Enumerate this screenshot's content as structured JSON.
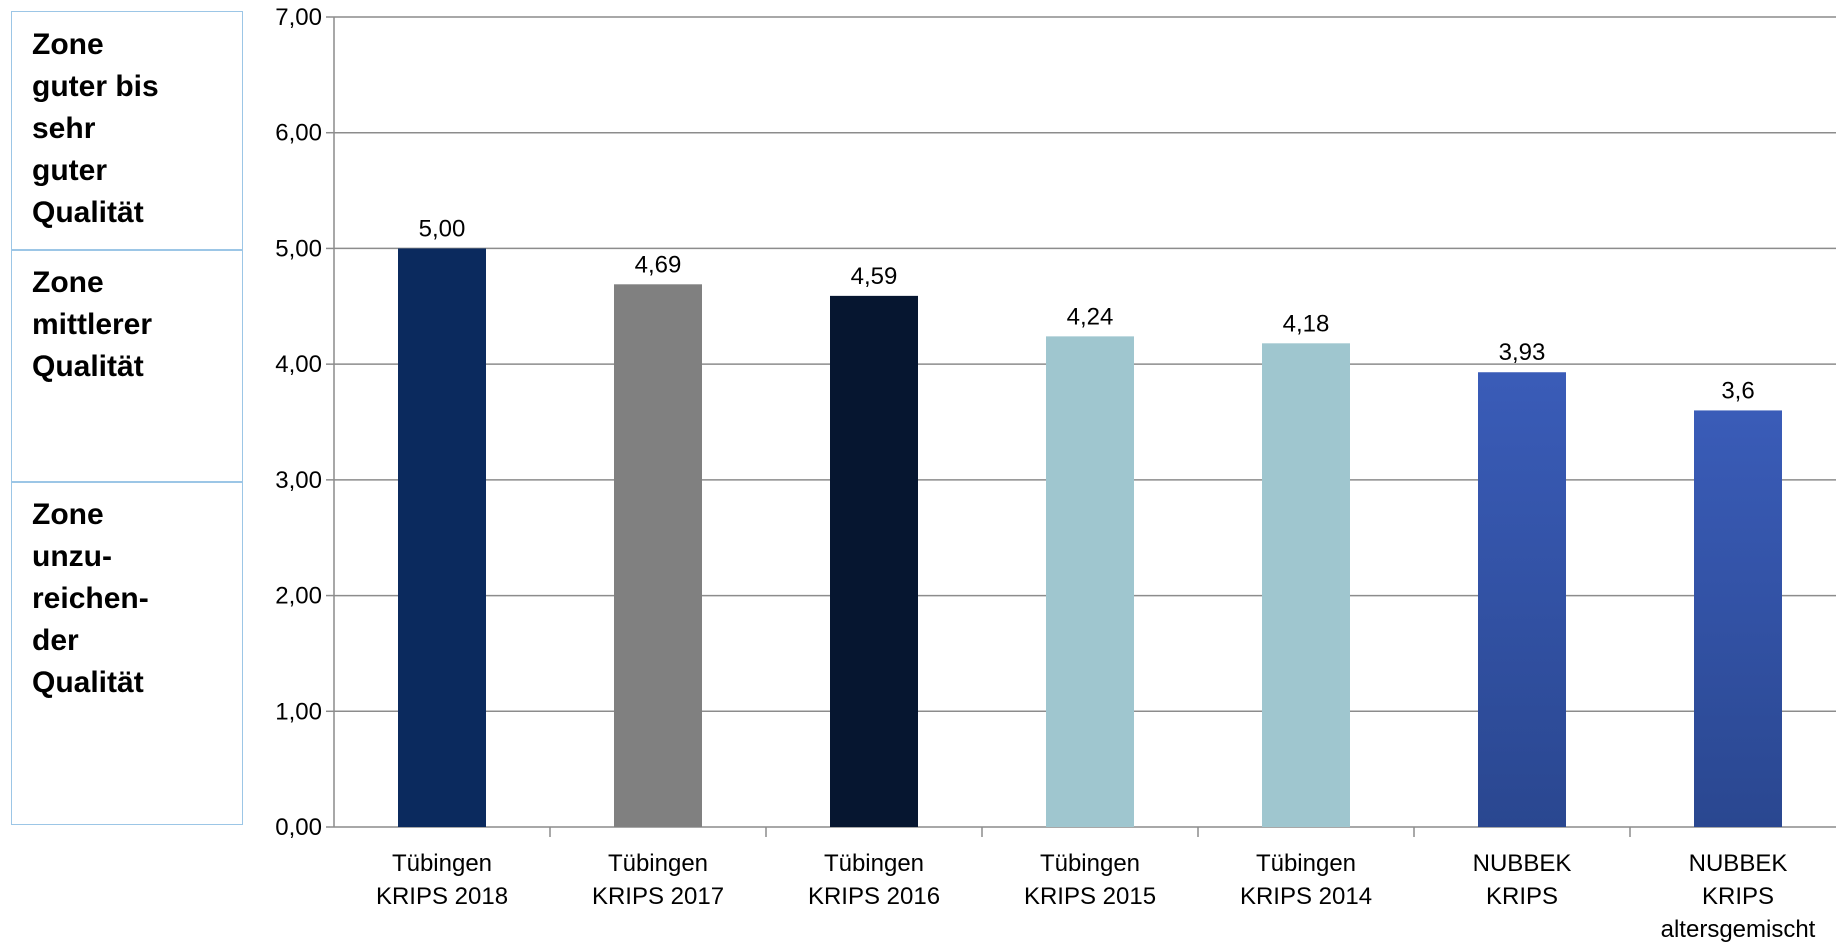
{
  "zones": [
    {
      "lines": [
        "Zone",
        "guter bis",
        "sehr",
        "guter",
        "Qualität"
      ]
    },
    {
      "lines": [
        "Zone",
        "mittlerer",
        "Qualität"
      ]
    },
    {
      "lines": [
        "Zone",
        "unzu-",
        "reichen-",
        "der",
        "Qualität"
      ]
    }
  ],
  "chart_data": {
    "type": "bar",
    "categories": [
      [
        "Tübingen",
        "KRIPS 2018"
      ],
      [
        "Tübingen",
        "KRIPS 2017"
      ],
      [
        "Tübingen",
        "KRIPS 2016"
      ],
      [
        "Tübingen",
        "KRIPS 2015"
      ],
      [
        "Tübingen",
        "KRIPS 2014"
      ],
      [
        "NUBBEK",
        "KRIPS"
      ],
      [
        "NUBBEK",
        "KRIPS",
        "altersgemischt"
      ]
    ],
    "values": [
      5.0,
      4.69,
      4.59,
      4.24,
      4.18,
      3.93,
      3.6
    ],
    "value_labels": [
      "5,00",
      "4,69",
      "4,59",
      "4,24",
      "4,18",
      "3,93",
      "3,6"
    ],
    "bar_colors": [
      "#0b2a5e",
      "#808080",
      "#061630",
      "#9fc6cf",
      "#9fc6cf",
      "#3a5cb8",
      "#3a5cb8"
    ],
    "ylim": [
      0,
      7
    ],
    "yticks": [
      "0,00",
      "1,00",
      "2,00",
      "3,00",
      "4,00",
      "5,00",
      "6,00",
      "7,00"
    ],
    "grid": true,
    "legend": "none"
  }
}
